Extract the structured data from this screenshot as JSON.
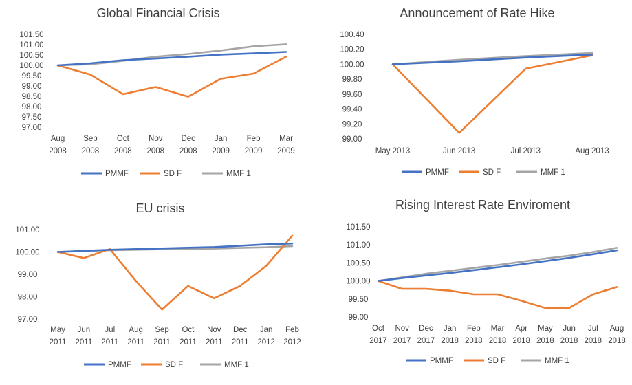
{
  "colors": {
    "PMMF": "#4472C4",
    "SD F": "#ED7D31",
    "MMF 1": "#A5A5A5"
  },
  "chart_data": [
    {
      "type": "line",
      "title": "Global Financial Crisis",
      "categories": [
        [
          "Aug",
          "2008"
        ],
        [
          "Sep",
          "2008"
        ],
        [
          "Oct",
          "2008"
        ],
        [
          "Nov",
          "2008"
        ],
        [
          "Dec",
          "2008"
        ],
        [
          "Jan",
          "2009"
        ],
        [
          "Feb",
          "2009"
        ],
        [
          "Mar",
          "2009"
        ]
      ],
      "ylim": [
        97.0,
        101.5
      ],
      "yticks": [
        "101.50",
        "101.00",
        "100.50",
        "100.00",
        "99.50",
        "99.00",
        "98.50",
        "98.00",
        "97.50",
        "97.00"
      ],
      "legend_position": "bottom",
      "series": [
        {
          "name": "PMMF",
          "values": [
            100.0,
            100.1,
            100.25,
            100.33,
            100.42,
            100.52,
            100.58,
            100.65
          ]
        },
        {
          "name": "SD F",
          "values": [
            100.0,
            99.55,
            98.6,
            98.95,
            98.48,
            99.35,
            99.6,
            100.42
          ]
        },
        {
          "name": "MMF 1",
          "values": [
            100.0,
            100.05,
            100.22,
            100.42,
            100.55,
            100.72,
            100.92,
            101.02
          ]
        }
      ]
    },
    {
      "type": "line",
      "title": "Announcement of Rate Hike",
      "categories": [
        [
          "May 2013"
        ],
        [
          "Jun 2013"
        ],
        [
          "Jul 2013"
        ],
        [
          "Aug 2013"
        ]
      ],
      "ylim": [
        99.0,
        100.4
      ],
      "yticks": [
        "100.40",
        "100.20",
        "100.00",
        "99.80",
        "99.60",
        "99.40",
        "99.20",
        "99.00"
      ],
      "legend_position": "bottom",
      "series": [
        {
          "name": "PMMF",
          "values": [
            100.0,
            100.04,
            100.09,
            100.13
          ]
        },
        {
          "name": "SD F",
          "values": [
            100.0,
            99.08,
            99.94,
            100.12
          ]
        },
        {
          "name": "MMF 1",
          "values": [
            100.0,
            100.06,
            100.11,
            100.15
          ]
        }
      ]
    },
    {
      "type": "line",
      "title": "EU crisis",
      "categories": [
        [
          "May",
          "2011"
        ],
        [
          "Jun",
          "2011"
        ],
        [
          "Jul",
          "2011"
        ],
        [
          "Aug",
          "2011"
        ],
        [
          "Sep",
          "2011"
        ],
        [
          "Oct",
          "2011"
        ],
        [
          "Nov",
          "2011"
        ],
        [
          "Dec",
          "2011"
        ],
        [
          "Jan",
          "2012"
        ],
        [
          "Feb",
          "2012"
        ]
      ],
      "ylim": [
        97.0,
        101.0
      ],
      "yticks": [
        "101.00",
        "100.00",
        "99.00",
        "98.00",
        "97.00"
      ],
      "legend_position": "bottom",
      "series": [
        {
          "name": "PMMF",
          "values": [
            100.0,
            100.05,
            100.1,
            100.13,
            100.16,
            100.19,
            100.22,
            100.28,
            100.34,
            100.38
          ]
        },
        {
          "name": "SD F",
          "values": [
            100.0,
            99.73,
            100.13,
            98.7,
            97.42,
            98.48,
            97.93,
            98.48,
            99.38,
            100.73
          ]
        },
        {
          "name": "MMF 1",
          "values": [
            100.0,
            100.04,
            100.08,
            100.1,
            100.12,
            100.13,
            100.15,
            100.18,
            100.21,
            100.26
          ]
        }
      ]
    },
    {
      "type": "line",
      "title": "Rising Interest Rate Enviroment",
      "categories": [
        [
          "Oct",
          "2017"
        ],
        [
          "Nov",
          "2017"
        ],
        [
          "Dec",
          "2017"
        ],
        [
          "Jan",
          "2018"
        ],
        [
          "Feb",
          "2018"
        ],
        [
          "Mar",
          "2018"
        ],
        [
          "Apr",
          "2018"
        ],
        [
          "May",
          "2018"
        ],
        [
          "Jun",
          "2018"
        ],
        [
          "Jul",
          "2018"
        ],
        [
          "Aug",
          "2018"
        ]
      ],
      "ylim": [
        99.0,
        101.5
      ],
      "yticks": [
        "101.50",
        "101.00",
        "100.50",
        "100.00",
        "99.50",
        "99.00"
      ],
      "legend_position": "bottom",
      "series": [
        {
          "name": "PMMF",
          "values": [
            100.0,
            100.08,
            100.15,
            100.22,
            100.3,
            100.38,
            100.46,
            100.55,
            100.64,
            100.74,
            100.85
          ]
        },
        {
          "name": "SD F",
          "values": [
            100.0,
            99.78,
            99.78,
            99.73,
            99.63,
            99.63,
            99.45,
            99.25,
            99.25,
            99.63,
            99.83
          ]
        },
        {
          "name": "MMF 1",
          "values": [
            100.0,
            100.1,
            100.2,
            100.28,
            100.36,
            100.44,
            100.53,
            100.62,
            100.7,
            100.8,
            100.92
          ]
        }
      ]
    }
  ]
}
